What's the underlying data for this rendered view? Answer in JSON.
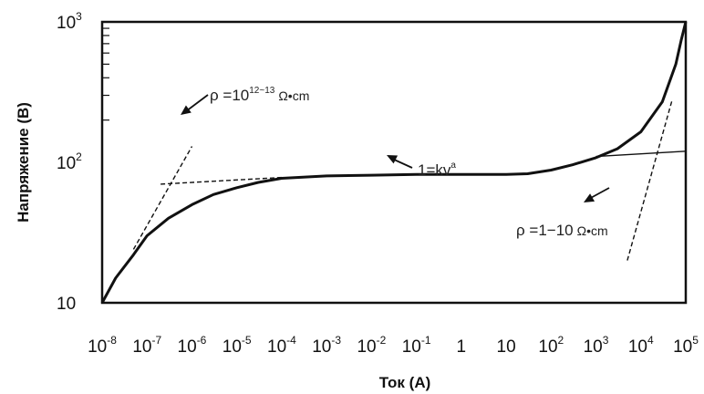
{
  "chart_data": {
    "type": "line",
    "title": "",
    "xlabel": "Ток (А)",
    "ylabel": "Напряжение (В)",
    "x_scale": "log",
    "y_scale": "log",
    "xlim": [
      1e-08,
      100000.0
    ],
    "ylim": [
      10,
      1000
    ],
    "grid": false,
    "legend": "none",
    "x_ticks": [
      {
        "base": "10",
        "exp": "-8",
        "value": 1e-08
      },
      {
        "base": "10",
        "exp": "-7",
        "value": 1e-07
      },
      {
        "base": "10",
        "exp": "-6",
        "value": 1e-06
      },
      {
        "base": "10",
        "exp": "-5",
        "value": 1e-05
      },
      {
        "base": "10",
        "exp": "-4",
        "value": 0.0001
      },
      {
        "base": "10",
        "exp": "-3",
        "value": 0.001
      },
      {
        "base": "10",
        "exp": "-2",
        "value": 0.01
      },
      {
        "base": "10",
        "exp": "-1",
        "value": 0.1
      },
      {
        "base": "1",
        "exp": "",
        "value": 1
      },
      {
        "base": "10",
        "exp": "",
        "value": 10
      },
      {
        "base": "10",
        "exp": "2",
        "value": 100
      },
      {
        "base": "10",
        "exp": "3",
        "value": 1000
      },
      {
        "base": "10",
        "exp": "4",
        "value": 10000
      },
      {
        "base": "10",
        "exp": "5",
        "value": 100000
      }
    ],
    "y_ticks": [
      {
        "base": "10",
        "exp": "",
        "value": 10
      },
      {
        "base": "10",
        "exp": "2",
        "value": 100
      },
      {
        "base": "10",
        "exp": "3",
        "value": 1000
      }
    ],
    "series": [
      {
        "style": "solid",
        "x": [
          1e-08,
          2e-08,
          5e-08,
          1e-07,
          3e-07,
          1e-06,
          3e-06,
          1e-05,
          3e-05,
          0.0001,
          0.001,
          0.01,
          0.1,
          1,
          10,
          30,
          100,
          300,
          1000,
          3000,
          10000,
          30000,
          60000,
          80000,
          100000
        ],
        "y": [
          10,
          15,
          22,
          30,
          40,
          50,
          59,
          66,
          72,
          77,
          80,
          81,
          82,
          82,
          82,
          83,
          88,
          96,
          108,
          125,
          165,
          270,
          500,
          750,
          1000
        ]
      },
      {
        "style": "dashed",
        "x": [
          5e-08,
          1e-06
        ],
        "y": [
          24,
          130
        ]
      },
      {
        "style": "dashed",
        "x": [
          2e-07,
          0.0001
        ],
        "y": [
          70,
          78
        ]
      },
      {
        "style": "solid-thin",
        "x": [
          1000,
          100000
        ],
        "y": [
          110,
          120
        ]
      },
      {
        "style": "dashed",
        "x": [
          5000,
          50000
        ],
        "y": [
          20,
          280
        ]
      }
    ],
    "annotations": [
      {
        "text": "ρ =10",
        "sup": "12~13",
        "unit": "Ω•cm",
        "at": [
          1e-06,
          130
        ],
        "arrow_to": [
          1e-06,
          120
        ]
      },
      {
        "text": "1=kv",
        "sup": "a",
        "unit": "",
        "at": [
          0.02,
          60
        ],
        "arrow_to": [
          0.003,
          70
        ]
      },
      {
        "text": "ρ =1−10",
        "sup": "",
        "unit": "Ω•cm",
        "at": [
          2000,
          23
        ],
        "arrow_to": [
          2000,
          30
        ]
      }
    ]
  }
}
